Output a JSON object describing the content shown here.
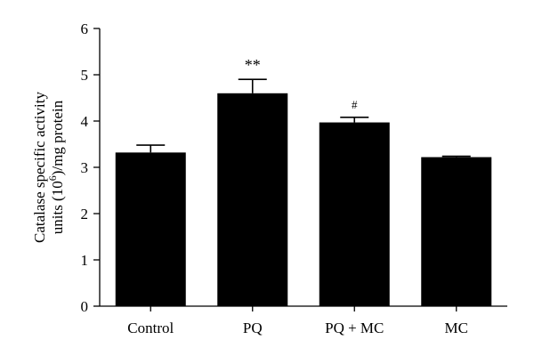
{
  "chart_data": {
    "type": "bar",
    "title": "",
    "xlabel": "",
    "ylabel_line1": "Catalase specific activity",
    "ylabel_line2_prefix": "units (10",
    "ylabel_line2_sup": "6",
    "ylabel_line2_suffix": ")/mg protein",
    "ylim": [
      0,
      6
    ],
    "yticks": [
      0,
      1,
      2,
      3,
      4,
      5,
      6
    ],
    "grid": false,
    "legend": "none",
    "bar_color": "#000000",
    "categories": [
      "Control",
      "PQ",
      "PQ + MC",
      "MC"
    ],
    "values": [
      3.32,
      4.6,
      3.97,
      3.22
    ],
    "errors": [
      0.16,
      0.3,
      0.11,
      0.02
    ],
    "annotations": [
      "",
      "**",
      "#",
      ""
    ]
  }
}
